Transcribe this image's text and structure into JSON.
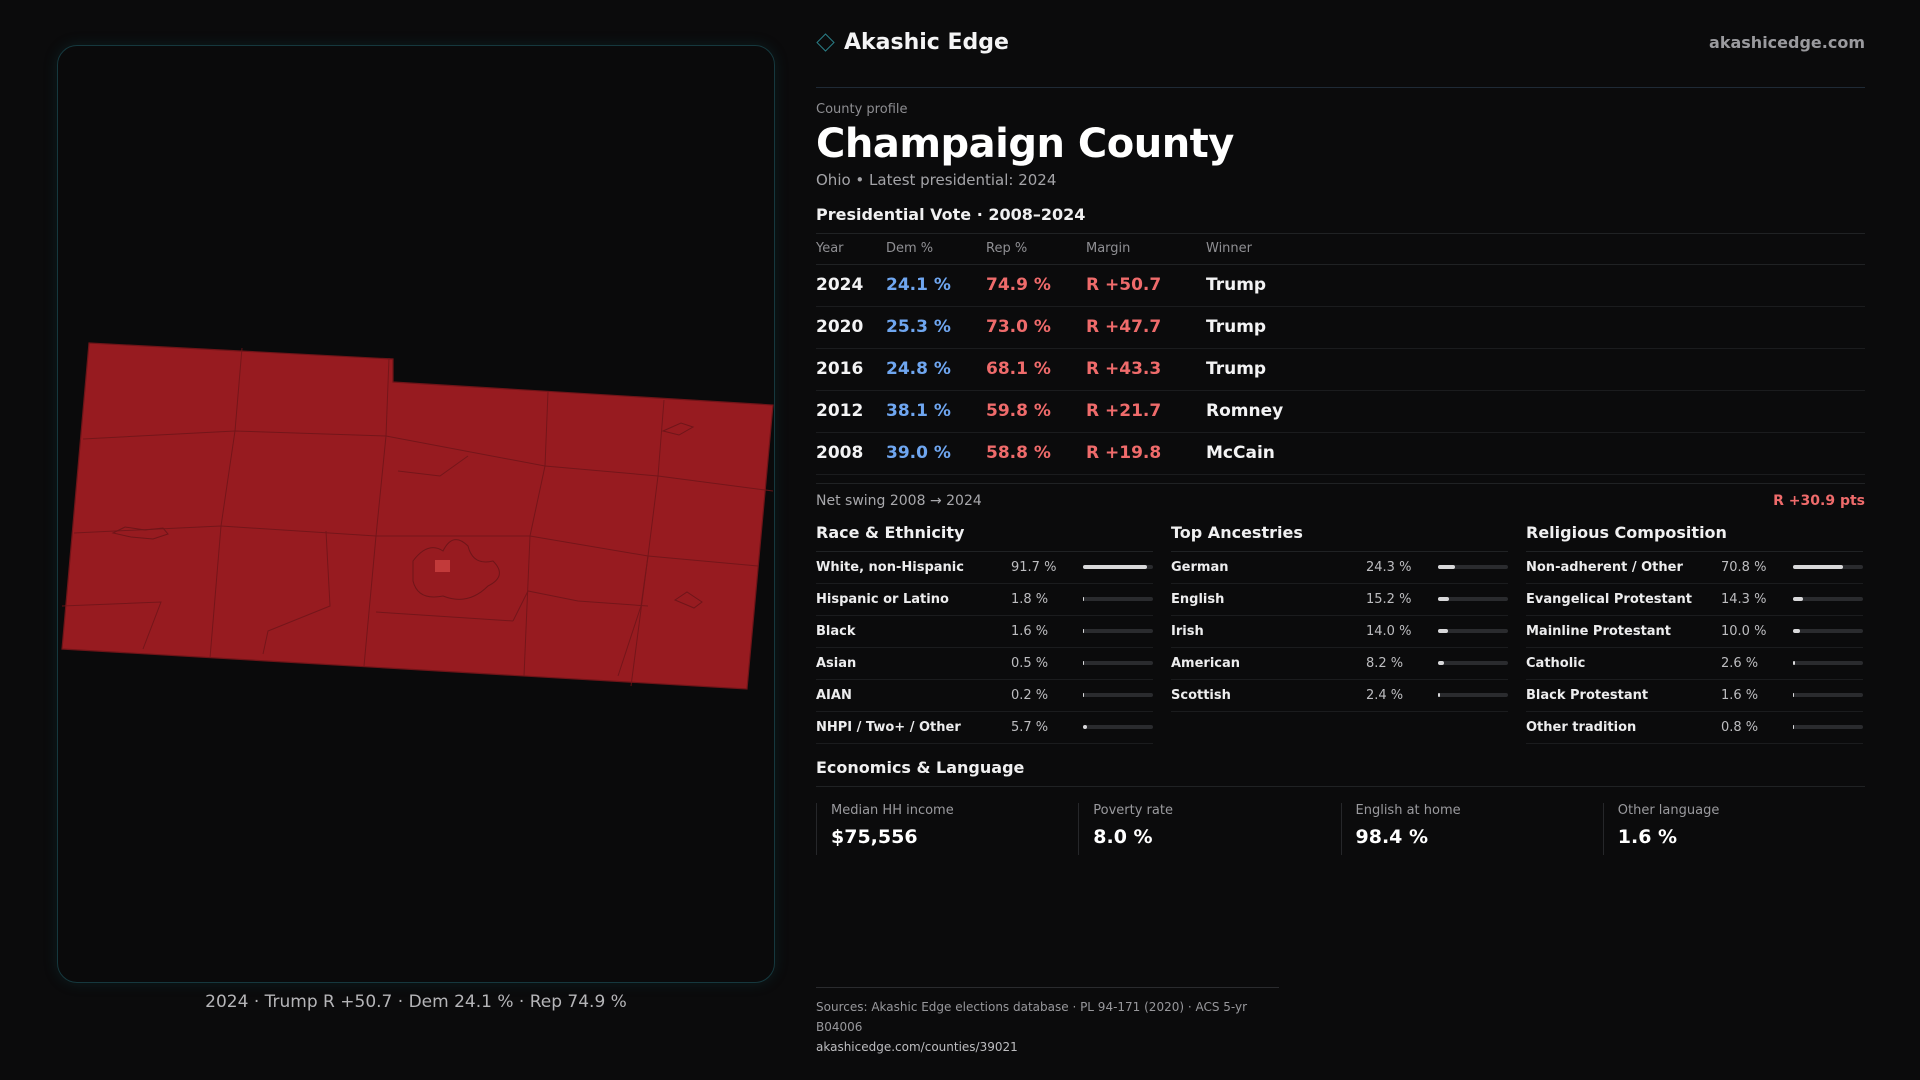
{
  "brand": {
    "name": "Akashic Edge",
    "url": "akashicedge.com",
    "accent": "#2a7e87"
  },
  "profile": {
    "eyebrow": "County profile",
    "county": "Champaign County",
    "subtitle": "Ohio • Latest presidential: 2024"
  },
  "vote": {
    "heading": "Presidential Vote · 2008–2024",
    "columns": [
      "Year",
      "Dem %",
      "Rep %",
      "Margin",
      "Winner"
    ],
    "rows": [
      {
        "year": "2024",
        "dem": "24.1 %",
        "rep": "74.9 %",
        "margin": "R +50.7",
        "winner": "Trump"
      },
      {
        "year": "2020",
        "dem": "25.3 %",
        "rep": "73.0 %",
        "margin": "R +47.7",
        "winner": "Trump"
      },
      {
        "year": "2016",
        "dem": "24.8 %",
        "rep": "68.1 %",
        "margin": "R +43.3",
        "winner": "Trump"
      },
      {
        "year": "2012",
        "dem": "38.1 %",
        "rep": "59.8 %",
        "margin": "R +21.7",
        "winner": "Romney"
      },
      {
        "year": "2008",
        "dem": "39.0 %",
        "rep": "58.8 %",
        "margin": "R +19.8",
        "winner": "McCain"
      }
    ],
    "dem_color": "#6fa6f0",
    "rep_color": "#ef6b6b"
  },
  "swing": {
    "label": "Net swing 2008 → 2024",
    "value": "R +30.9 pts"
  },
  "race": {
    "heading": "Race & Ethnicity",
    "items": [
      {
        "label": "White, non-Hispanic",
        "value": "91.7 %",
        "share": 0.917
      },
      {
        "label": "Hispanic or Latino",
        "value": "1.8 %",
        "share": 0.018
      },
      {
        "label": "Black",
        "value": "1.6 %",
        "share": 0.016
      },
      {
        "label": "Asian",
        "value": "0.5 %",
        "share": 0.005
      },
      {
        "label": "AIAN",
        "value": "0.2 %",
        "share": 0.002
      },
      {
        "label": "NHPI / Two+ / Other",
        "value": "5.7 %",
        "share": 0.057
      }
    ]
  },
  "ancestry": {
    "heading": "Top Ancestries",
    "items": [
      {
        "label": "German",
        "value": "24.3 %",
        "share": 0.243
      },
      {
        "label": "English",
        "value": "15.2 %",
        "share": 0.152
      },
      {
        "label": "Irish",
        "value": "14.0 %",
        "share": 0.14
      },
      {
        "label": "American",
        "value": "8.2 %",
        "share": 0.082
      },
      {
        "label": "Scottish",
        "value": "2.4 %",
        "share": 0.024
      }
    ]
  },
  "religion": {
    "heading": "Religious Composition",
    "items": [
      {
        "label": "Non-adherent / Other",
        "value": "70.8 %",
        "share": 0.708
      },
      {
        "label": "Evangelical Protestant",
        "value": "14.3 %",
        "share": 0.143
      },
      {
        "label": "Mainline Protestant",
        "value": "10.0 %",
        "share": 0.1
      },
      {
        "label": "Catholic",
        "value": "2.6 %",
        "share": 0.026
      },
      {
        "label": "Black Protestant",
        "value": "1.6 %",
        "share": 0.016
      },
      {
        "label": "Other tradition",
        "value": "0.8 %",
        "share": 0.008
      }
    ]
  },
  "economics": {
    "heading": "Economics & Language",
    "cards": [
      {
        "label": "Median HH income",
        "value": "$75,556"
      },
      {
        "label": "Poverty rate",
        "value": "8.0 %"
      },
      {
        "label": "English at home",
        "value": "98.4 %"
      },
      {
        "label": "Other language",
        "value": "1.6 %"
      }
    ]
  },
  "map": {
    "caption": "2024 · Trump R +50.7 · Dem 24.1 % · Rep 74.9 %",
    "fill_color": "#971b20",
    "border_color": "#6e1418",
    "city_color": "#c23a3a"
  },
  "sources": {
    "line": "Sources: Akashic Edge elections database · PL 94-171 (2020) · ACS 5-yr B04006",
    "url": "akashicedge.com/counties/39021"
  }
}
